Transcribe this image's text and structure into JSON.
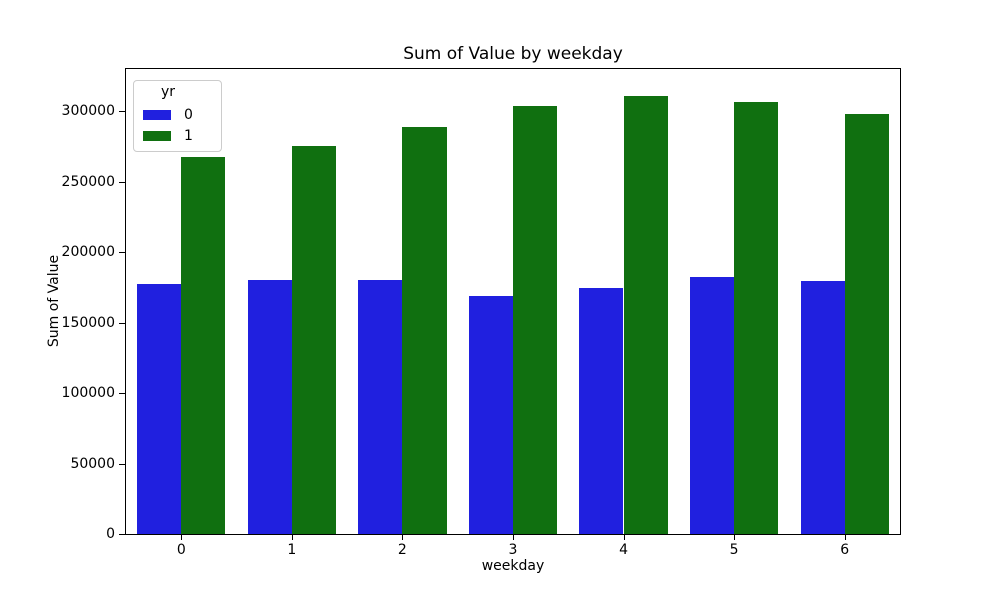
{
  "chart_data": {
    "type": "bar",
    "title": "Sum of Value by weekday",
    "xlabel": "weekday",
    "ylabel": "Sum of Value",
    "categories": [
      "0",
      "1",
      "2",
      "3",
      "4",
      "5",
      "6"
    ],
    "series": [
      {
        "name": "0",
        "color": "#2020df",
        "values": [
          177500,
          180400,
          180400,
          169100,
          174700,
          182500,
          179600
        ]
      },
      {
        "name": "1",
        "color": "#107010",
        "values": [
          267700,
          275400,
          289100,
          303900,
          310700,
          306500,
          298200
        ]
      }
    ],
    "ylim": [
      0,
      330000
    ],
    "yticks": [
      0,
      50000,
      100000,
      150000,
      200000,
      250000,
      300000
    ],
    "ytick_labels": [
      "0",
      "50000",
      "100000",
      "150000",
      "200000",
      "250000",
      "300000"
    ],
    "legend": {
      "title": "yr",
      "position": "upper left",
      "entries": [
        "0",
        "1"
      ]
    },
    "grid": false,
    "bar_group_width_fraction": 0.8,
    "background_color": "#ffffff",
    "spine_color": "#000000"
  }
}
